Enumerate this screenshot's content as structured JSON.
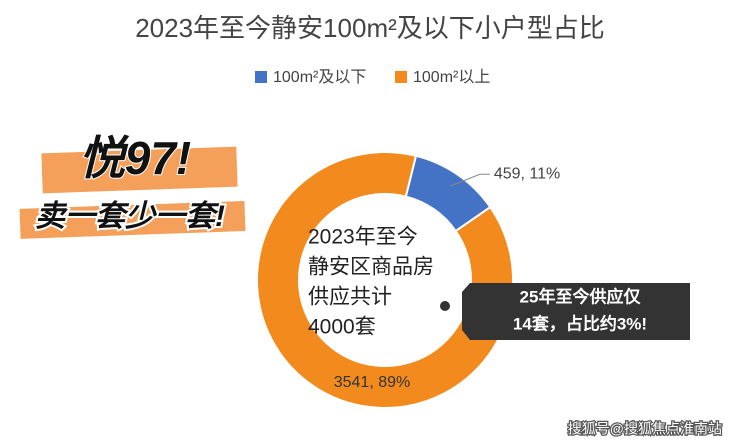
{
  "chart_data": {
    "type": "donut",
    "title": "2023年至今静安100m²及以下小户型占比",
    "categories": [
      "100m²及以下",
      "100m²以上"
    ],
    "values": [
      459,
      3541
    ],
    "value_labels": [
      "459, 11%",
      "3541, 89%"
    ],
    "colors": [
      "#4472c4",
      "#f28a1e"
    ],
    "legend": "top",
    "center_text": [
      "2023年至今",
      "静安区商品房",
      "供应共计",
      "4000套"
    ],
    "stickers": [
      "悦97!",
      "卖一套少一套!"
    ],
    "callout": [
      "25年至今供应仅",
      "14套，占比约3%!"
    ],
    "watermark": "搜狐号@搜狐焦点淮南站"
  }
}
